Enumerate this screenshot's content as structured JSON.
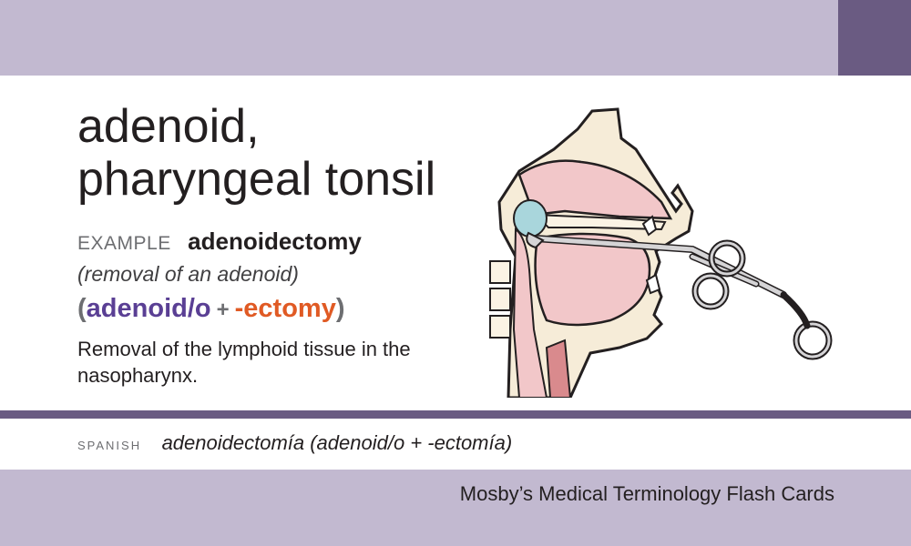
{
  "card": {
    "term_line1": "adenoid,",
    "term_line2": "pharyngeal tonsil",
    "example_label": "EXAMPLE",
    "example_word": "adenoidectomy",
    "meaning": "(removal of an adenoid)",
    "parts": {
      "open": "(",
      "root": "adenoid/o",
      "plus": "+",
      "suffix": "-ectomy",
      "close": ")"
    },
    "definition": "Removal of the lymphoid tissue in the nasopharynx."
  },
  "spanish": {
    "label": "SPANISH",
    "text": "adenoidectomía (adenoid/o + -ectomía)"
  },
  "footer": {
    "title": "Mosby’s Medical Terminology Flash Cards"
  },
  "illustration": {
    "subject": "sagittal view of head with adenoid curette instrument",
    "icon": "adenoidectomy-illustration"
  },
  "colors": {
    "band": "#c2b9d0",
    "accent": "#6a5b82",
    "root": "#5a3f94",
    "suffix": "#e05a24"
  }
}
